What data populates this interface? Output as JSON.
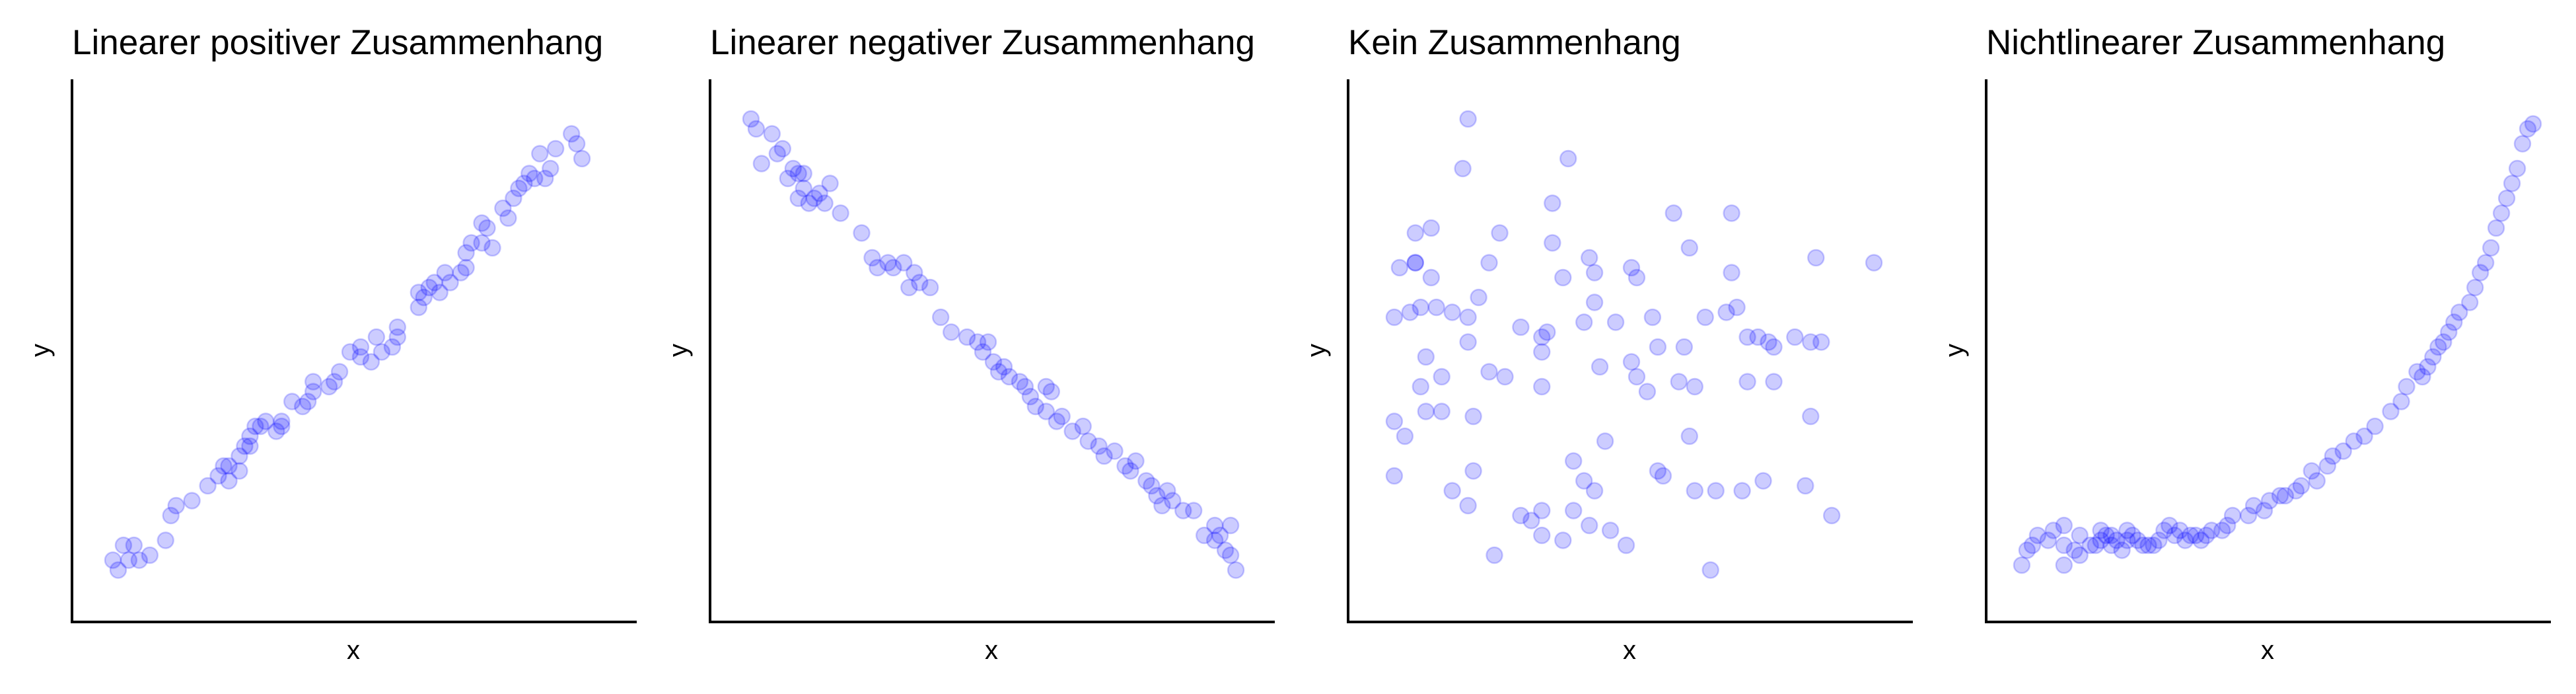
{
  "chart_data": [
    {
      "type": "scatter",
      "title": "Linearer positiver Zusammenhang",
      "xlabel": "x",
      "ylabel": "y",
      "ticks_shown": false,
      "grid": false,
      "xlim": [
        0,
        100
      ],
      "ylim": [
        0,
        100
      ],
      "marker_color": "#0000ff",
      "points": [
        [
          5,
          5
        ],
        [
          7,
          7
        ],
        [
          4,
          7
        ],
        [
          6,
          10
        ],
        [
          9,
          7
        ],
        [
          8,
          10
        ],
        [
          11,
          8
        ],
        [
          14,
          11
        ],
        [
          15,
          16
        ],
        [
          16,
          18
        ],
        [
          19,
          19
        ],
        [
          22,
          22
        ],
        [
          24,
          24
        ],
        [
          25,
          26
        ],
        [
          26,
          23
        ],
        [
          26,
          26
        ],
        [
          28,
          25
        ],
        [
          28,
          28
        ],
        [
          29,
          30
        ],
        [
          30,
          32
        ],
        [
          30,
          30
        ],
        [
          31,
          34
        ],
        [
          32,
          34
        ],
        [
          33,
          35
        ],
        [
          35,
          33
        ],
        [
          36,
          34
        ],
        [
          36,
          35
        ],
        [
          38,
          39
        ],
        [
          40,
          38
        ],
        [
          41,
          39
        ],
        [
          42,
          41
        ],
        [
          42,
          43
        ],
        [
          45,
          42
        ],
        [
          46,
          43
        ],
        [
          47,
          45
        ],
        [
          49,
          49
        ],
        [
          51,
          50
        ],
        [
          51,
          48
        ],
        [
          53,
          47
        ],
        [
          54,
          52
        ],
        [
          55,
          49
        ],
        [
          57,
          50
        ],
        [
          58,
          52
        ],
        [
          58,
          54
        ],
        [
          62,
          58
        ],
        [
          62,
          61
        ],
        [
          63,
          60
        ],
        [
          64,
          62
        ],
        [
          65,
          63
        ],
        [
          66,
          61
        ],
        [
          67,
          65
        ],
        [
          68,
          63
        ],
        [
          70,
          65
        ],
        [
          71,
          66
        ],
        [
          71,
          69
        ],
        [
          72,
          71
        ],
        [
          74,
          71
        ],
        [
          74,
          75
        ],
        [
          75,
          74
        ],
        [
          76,
          70
        ],
        [
          78,
          78
        ],
        [
          79,
          76
        ],
        [
          80,
          80
        ],
        [
          81,
          82
        ],
        [
          82,
          83
        ],
        [
          83,
          85
        ],
        [
          84,
          84
        ],
        [
          85,
          89
        ],
        [
          86,
          84
        ],
        [
          87,
          86
        ],
        [
          88,
          90
        ],
        [
          91,
          93
        ],
        [
          92,
          91
        ],
        [
          93,
          88
        ]
      ]
    },
    {
      "type": "scatter",
      "title": "Linearer negativer Zusammenhang",
      "xlabel": "x",
      "ylabel": "y",
      "ticks_shown": false,
      "grid": false,
      "xlim": [
        0,
        100
      ],
      "ylim": [
        0,
        100
      ],
      "marker_color": "#0000ff",
      "points": [
        [
          4,
          96
        ],
        [
          5,
          94
        ],
        [
          8,
          93
        ],
        [
          10,
          90
        ],
        [
          9,
          89
        ],
        [
          6,
          87
        ],
        [
          11,
          84
        ],
        [
          12,
          86
        ],
        [
          13,
          85
        ],
        [
          14,
          85
        ],
        [
          13,
          80
        ],
        [
          14,
          82
        ],
        [
          15,
          79
        ],
        [
          16,
          80
        ],
        [
          18,
          79
        ],
        [
          17,
          81
        ],
        [
          19,
          83
        ],
        [
          21,
          77
        ],
        [
          25,
          73
        ],
        [
          27,
          68
        ],
        [
          28,
          66
        ],
        [
          30,
          67
        ],
        [
          31,
          66
        ],
        [
          33,
          67
        ],
        [
          35,
          65
        ],
        [
          34,
          62
        ],
        [
          36,
          63
        ],
        [
          38,
          62
        ],
        [
          40,
          56
        ],
        [
          42,
          53
        ],
        [
          45,
          52
        ],
        [
          47,
          51
        ],
        [
          48,
          49
        ],
        [
          49,
          51
        ],
        [
          50,
          47
        ],
        [
          51,
          45
        ],
        [
          52,
          46
        ],
        [
          53,
          44
        ],
        [
          55,
          43
        ],
        [
          56,
          42
        ],
        [
          57,
          40
        ],
        [
          60,
          42
        ],
        [
          61,
          41
        ],
        [
          58,
          38
        ],
        [
          60,
          37
        ],
        [
          62,
          35
        ],
        [
          63,
          36
        ],
        [
          65,
          33
        ],
        [
          67,
          34
        ],
        [
          68,
          31
        ],
        [
          70,
          30
        ],
        [
          71,
          28
        ],
        [
          73,
          29
        ],
        [
          75,
          26
        ],
        [
          76,
          25
        ],
        [
          77,
          27
        ],
        [
          79,
          23
        ],
        [
          80,
          22
        ],
        [
          81,
          20
        ],
        [
          82,
          18
        ],
        [
          83,
          21
        ],
        [
          84,
          19
        ],
        [
          86,
          17
        ],
        [
          88,
          17
        ],
        [
          90,
          12
        ],
        [
          92,
          11
        ],
        [
          93,
          12
        ],
        [
          94,
          9
        ],
        [
          95,
          8
        ],
        [
          96,
          5
        ],
        [
          95,
          14
        ],
        [
          92,
          14
        ]
      ]
    },
    {
      "type": "scatter",
      "title": "Kein Zusammenhang",
      "xlabel": "x",
      "ylabel": "y",
      "ticks_shown": false,
      "grid": false,
      "xlim": [
        0,
        100
      ],
      "ylim": [
        0,
        100
      ],
      "marker_color": "#0000ff",
      "points": [
        [
          19,
          96
        ],
        [
          38,
          88
        ],
        [
          18,
          86
        ],
        [
          35,
          79
        ],
        [
          58,
          77
        ],
        [
          69,
          77
        ],
        [
          9,
          73
        ],
        [
          12,
          74
        ],
        [
          25,
          73
        ],
        [
          6,
          66
        ],
        [
          9,
          67
        ],
        [
          12,
          64
        ],
        [
          35,
          71
        ],
        [
          37,
          64
        ],
        [
          42,
          68
        ],
        [
          43,
          65
        ],
        [
          50,
          66
        ],
        [
          51,
          64
        ],
        [
          61,
          70
        ],
        [
          69,
          65
        ],
        [
          85,
          68
        ],
        [
          96,
          67
        ],
        [
          5,
          56
        ],
        [
          8,
          57
        ],
        [
          10,
          58
        ],
        [
          13,
          58
        ],
        [
          16,
          57
        ],
        [
          19,
          56
        ],
        [
          21,
          60
        ],
        [
          29,
          54
        ],
        [
          33,
          52
        ],
        [
          34,
          53
        ],
        [
          41,
          55
        ],
        [
          43,
          59
        ],
        [
          47,
          55
        ],
        [
          54,
          56
        ],
        [
          55,
          50
        ],
        [
          60,
          50
        ],
        [
          64,
          56
        ],
        [
          68,
          57
        ],
        [
          70,
          58
        ],
        [
          72,
          52
        ],
        [
          74,
          52
        ],
        [
          76,
          51
        ],
        [
          77,
          50
        ],
        [
          81,
          52
        ],
        [
          86,
          51
        ],
        [
          84,
          51
        ],
        [
          11,
          48
        ],
        [
          10,
          42
        ],
        [
          14,
          44
        ],
        [
          19,
          51
        ],
        [
          23,
          45
        ],
        [
          26,
          44
        ],
        [
          33,
          49
        ],
        [
          33,
          42
        ],
        [
          44,
          46
        ],
        [
          50,
          47
        ],
        [
          51,
          44
        ],
        [
          53,
          41
        ],
        [
          59,
          43
        ],
        [
          62,
          42
        ],
        [
          72,
          43
        ],
        [
          77,
          43
        ],
        [
          84,
          36
        ],
        [
          5,
          35
        ],
        [
          7,
          32
        ],
        [
          11,
          37
        ],
        [
          14,
          37
        ],
        [
          20,
          36
        ],
        [
          5,
          24
        ],
        [
          16,
          21
        ],
        [
          20,
          25
        ],
        [
          19,
          18
        ],
        [
          29,
          16
        ],
        [
          33,
          17
        ],
        [
          39,
          17
        ],
        [
          41,
          23
        ],
        [
          39,
          27
        ],
        [
          43,
          21
        ],
        [
          55,
          25
        ],
        [
          56,
          24
        ],
        [
          62,
          21
        ],
        [
          66,
          21
        ],
        [
          71,
          21
        ],
        [
          75,
          23
        ],
        [
          83,
          22
        ],
        [
          88,
          16
        ],
        [
          9,
          67
        ],
        [
          23,
          67
        ],
        [
          31,
          15
        ],
        [
          33,
          12
        ],
        [
          37,
          11
        ],
        [
          42,
          14
        ],
        [
          46,
          13
        ],
        [
          49,
          10
        ],
        [
          24,
          8
        ],
        [
          65,
          5
        ],
        [
          45,
          31
        ],
        [
          61,
          32
        ]
      ]
    },
    {
      "type": "scatter",
      "title": "Nichtlinearer Zusammenhang",
      "xlabel": "x",
      "ylabel": "y",
      "ticks_shown": false,
      "grid": false,
      "xlim": [
        0,
        100
      ],
      "ylim": [
        0,
        100
      ],
      "marker_color": "#0000ff",
      "points": [
        [
          3,
          6
        ],
        [
          4,
          9
        ],
        [
          5,
          10
        ],
        [
          6,
          12
        ],
        [
          8,
          11
        ],
        [
          11,
          6
        ],
        [
          11,
          10
        ],
        [
          13,
          9
        ],
        [
          14,
          8
        ],
        [
          16,
          10
        ],
        [
          17,
          10
        ],
        [
          18,
          11
        ],
        [
          19,
          12
        ],
        [
          20,
          10
        ],
        [
          21,
          11
        ],
        [
          22,
          9
        ],
        [
          23,
          11
        ],
        [
          24,
          12
        ],
        [
          25,
          11
        ],
        [
          27,
          10
        ],
        [
          28,
          10
        ],
        [
          29,
          11
        ],
        [
          30,
          13
        ],
        [
          32,
          12
        ],
        [
          33,
          13
        ],
        [
          35,
          12
        ],
        [
          36,
          12
        ],
        [
          37,
          11
        ],
        [
          38,
          12
        ],
        [
          39,
          13
        ],
        [
          41,
          13
        ],
        [
          42,
          14
        ],
        [
          43,
          16
        ],
        [
          46,
          16
        ],
        [
          47,
          18
        ],
        [
          49,
          17
        ],
        [
          50,
          19
        ],
        [
          52,
          20
        ],
        [
          53,
          20
        ],
        [
          55,
          21
        ],
        [
          56,
          22
        ],
        [
          58,
          25
        ],
        [
          59,
          23
        ],
        [
          61,
          26
        ],
        [
          62,
          28
        ],
        [
          64,
          29
        ],
        [
          66,
          31
        ],
        [
          68,
          32
        ],
        [
          70,
          34
        ],
        [
          73,
          37
        ],
        [
          75,
          39
        ],
        [
          76,
          42
        ],
        [
          78,
          45
        ],
        [
          79,
          44
        ],
        [
          80,
          46
        ],
        [
          81,
          48
        ],
        [
          82,
          50
        ],
        [
          83,
          51
        ],
        [
          84,
          53
        ],
        [
          85,
          55
        ],
        [
          86,
          57
        ],
        [
          88,
          59
        ],
        [
          89,
          62
        ],
        [
          90,
          65
        ],
        [
          91,
          67
        ],
        [
          92,
          70
        ],
        [
          93,
          74
        ],
        [
          94,
          77
        ],
        [
          95,
          80
        ],
        [
          96,
          83
        ],
        [
          97,
          86
        ],
        [
          98,
          91
        ],
        [
          99,
          94
        ],
        [
          100,
          95
        ],
        [
          9,
          13
        ],
        [
          11,
          14
        ],
        [
          14,
          12
        ],
        [
          18,
          13
        ],
        [
          20,
          12
        ],
        [
          23,
          13
        ],
        [
          26,
          10
        ],
        [
          31,
          14
        ],
        [
          34,
          11
        ]
      ]
    }
  ]
}
